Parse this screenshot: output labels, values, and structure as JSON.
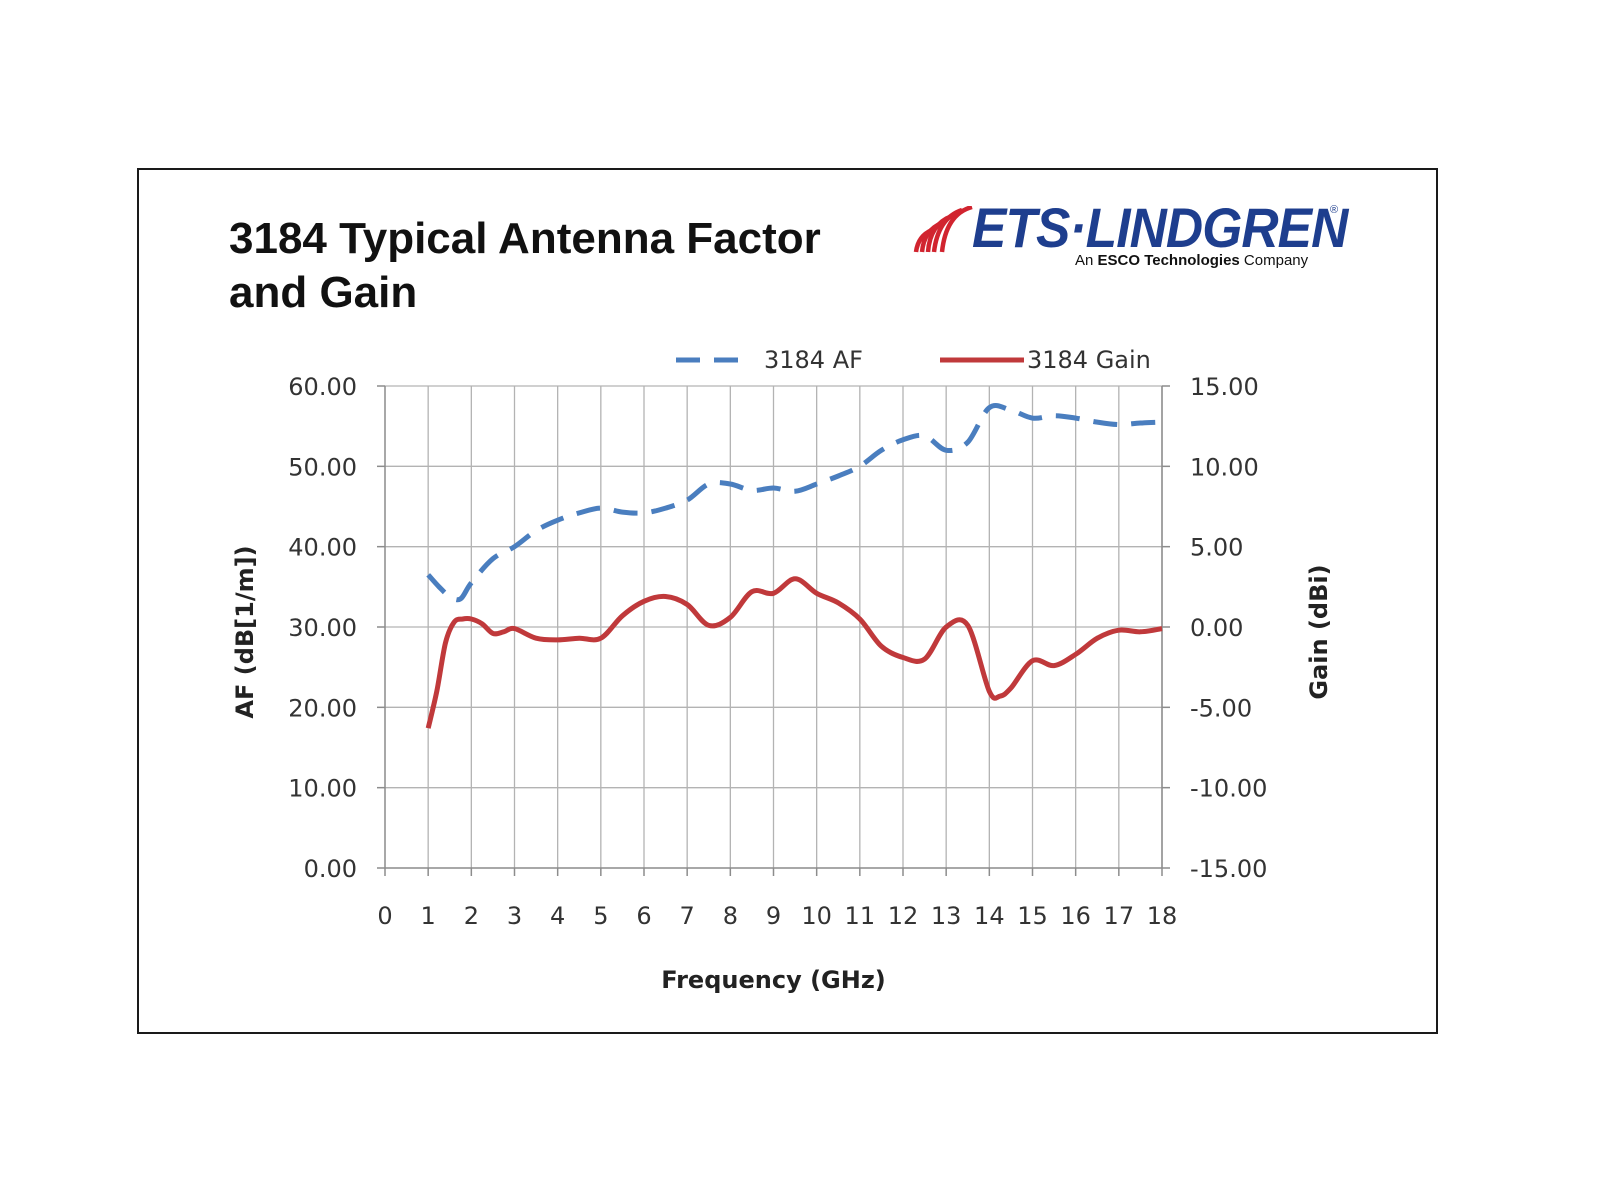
{
  "title": {
    "line1": "3184 Typical Antenna Factor",
    "line2": "and Gain"
  },
  "logo": {
    "name": "ETS·LINDGREN",
    "registered": "®",
    "tagline_prefix": "An ",
    "tagline_bold": "ESCO Technologies",
    "tagline_suffix": " Company",
    "colors": {
      "brand_blue": "#1e3e8e",
      "brand_red": "#d1242f"
    }
  },
  "chart_data": {
    "type": "line",
    "xlabel": "Frequency (GHz)",
    "ylabel": "AF (dB[1/m])",
    "y2label": "Gain (dBi)",
    "xlim": [
      0,
      18
    ],
    "ylim": [
      0,
      60
    ],
    "y2lim": [
      -15,
      15
    ],
    "x_ticks": [
      "0",
      "1",
      "2",
      "3",
      "4",
      "5",
      "6",
      "7",
      "8",
      "9",
      "10",
      "11",
      "12",
      "13",
      "14",
      "15",
      "16",
      "17",
      "18"
    ],
    "y_ticks": [
      "0.00",
      "10.00",
      "20.00",
      "30.00",
      "40.00",
      "50.00",
      "60.00"
    ],
    "y2_ticks": [
      "-15.00",
      "-10.00",
      "-5.00",
      "0.00",
      "5.00",
      "10.00",
      "15.00"
    ],
    "grid": true,
    "legend_position": "top",
    "series": [
      {
        "name": "3184 AF",
        "axis": "left",
        "style": "dashed",
        "color": "#4a7ebf",
        "x": [
          1,
          1.25,
          1.5,
          1.75,
          2,
          2.5,
          3,
          3.5,
          4,
          4.5,
          5,
          5.5,
          6,
          6.5,
          7,
          7.5,
          8,
          8.5,
          9,
          9.5,
          10,
          10.5,
          11,
          11.5,
          12,
          12.5,
          13,
          13.5,
          14,
          14.5,
          15,
          15.5,
          16,
          16.5,
          17,
          17.5,
          18
        ],
        "values": [
          36.5,
          35.0,
          33.8,
          33.5,
          35.5,
          38.5,
          40.0,
          42.0,
          43.3,
          44.2,
          44.8,
          44.3,
          44.2,
          44.8,
          45.8,
          47.8,
          47.8,
          47.0,
          47.3,
          46.9,
          47.8,
          48.8,
          50.0,
          52.0,
          53.3,
          53.8,
          52.0,
          53.0,
          57.3,
          57.0,
          56.0,
          56.3,
          56.0,
          55.5,
          55.2,
          55.4,
          55.5
        ]
      },
      {
        "name": "3184 Gain",
        "axis": "right",
        "style": "solid",
        "color": "#c0393b",
        "x": [
          1,
          1.2,
          1.4,
          1.6,
          1.8,
          2,
          2.25,
          2.5,
          2.75,
          3,
          3.5,
          4,
          4.5,
          5,
          5.5,
          6,
          6.5,
          7,
          7.5,
          8,
          8.5,
          9,
          9.5,
          10,
          10.5,
          11,
          11.5,
          12,
          12.5,
          13,
          13.5,
          14,
          14.25,
          14.5,
          15,
          15.5,
          16,
          16.5,
          17,
          17.5,
          18
        ],
        "values": [
          -6.3,
          -4.0,
          -1.0,
          0.3,
          0.5,
          0.5,
          0.2,
          -0.4,
          -0.3,
          -0.1,
          -0.7,
          -0.8,
          -0.7,
          -0.7,
          0.7,
          1.6,
          1.9,
          1.4,
          0.1,
          0.6,
          2.2,
          2.1,
          3.0,
          2.1,
          1.5,
          0.5,
          -1.2,
          -1.9,
          -2.0,
          0.0,
          0.1,
          -4.0,
          -4.3,
          -3.8,
          -2.1,
          -2.4,
          -1.7,
          -0.7,
          -0.2,
          -0.3,
          -0.1
        ]
      }
    ]
  }
}
